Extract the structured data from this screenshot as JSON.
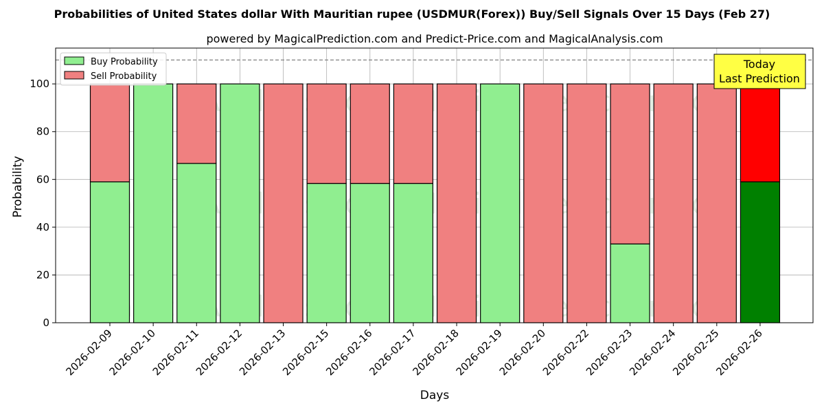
{
  "title": "Probabilities of United States dollar With Mauritian rupee (USDMUR(Forex)) Buy/Sell Signals Over 15 Days (Feb 27)",
  "subtitle": "powered by MagicalPrediction.com and Predict-Price.com and MagicalAnalysis.com",
  "watermarks": [
    "MagicalAnalysis.com",
    "MagicalPrediction.com"
  ],
  "today_label": [
    "Today",
    "Last Prediction"
  ],
  "colors": {
    "buy": "#90ee90",
    "sell": "#f08080",
    "buy_today": "#008000",
    "sell_today": "#ff0000",
    "today_box": "#ffff44",
    "threshold": "#808080"
  },
  "chart_data": {
    "type": "bar",
    "stacked": true,
    "xlabel": "Days",
    "ylabel": "Probability",
    "ylim": [
      0,
      115
    ],
    "yticks": [
      0,
      20,
      40,
      60,
      80,
      100
    ],
    "threshold_line": 110,
    "grid": true,
    "legend_position": "top-left",
    "categories": [
      "2026-02-09",
      "2026-02-10",
      "2026-02-11",
      "2026-02-12",
      "2026-02-13",
      "2026-02-15",
      "2026-02-16",
      "2026-02-17",
      "2026-02-18",
      "2026-02-19",
      "2026-02-20",
      "2026-02-22",
      "2026-02-23",
      "2026-02-24",
      "2026-02-25",
      "2026-02-26"
    ],
    "series": [
      {
        "name": "Buy Probability",
        "values": [
          59,
          100,
          66.7,
          100,
          0,
          58.3,
          58.3,
          58.3,
          0,
          100,
          0,
          0,
          33,
          0,
          0,
          59
        ]
      },
      {
        "name": "Sell Probability",
        "values": [
          41,
          0,
          33.3,
          0,
          100,
          41.7,
          41.7,
          41.7,
          100,
          0,
          100,
          100,
          67,
          100,
          100,
          41
        ]
      }
    ]
  }
}
